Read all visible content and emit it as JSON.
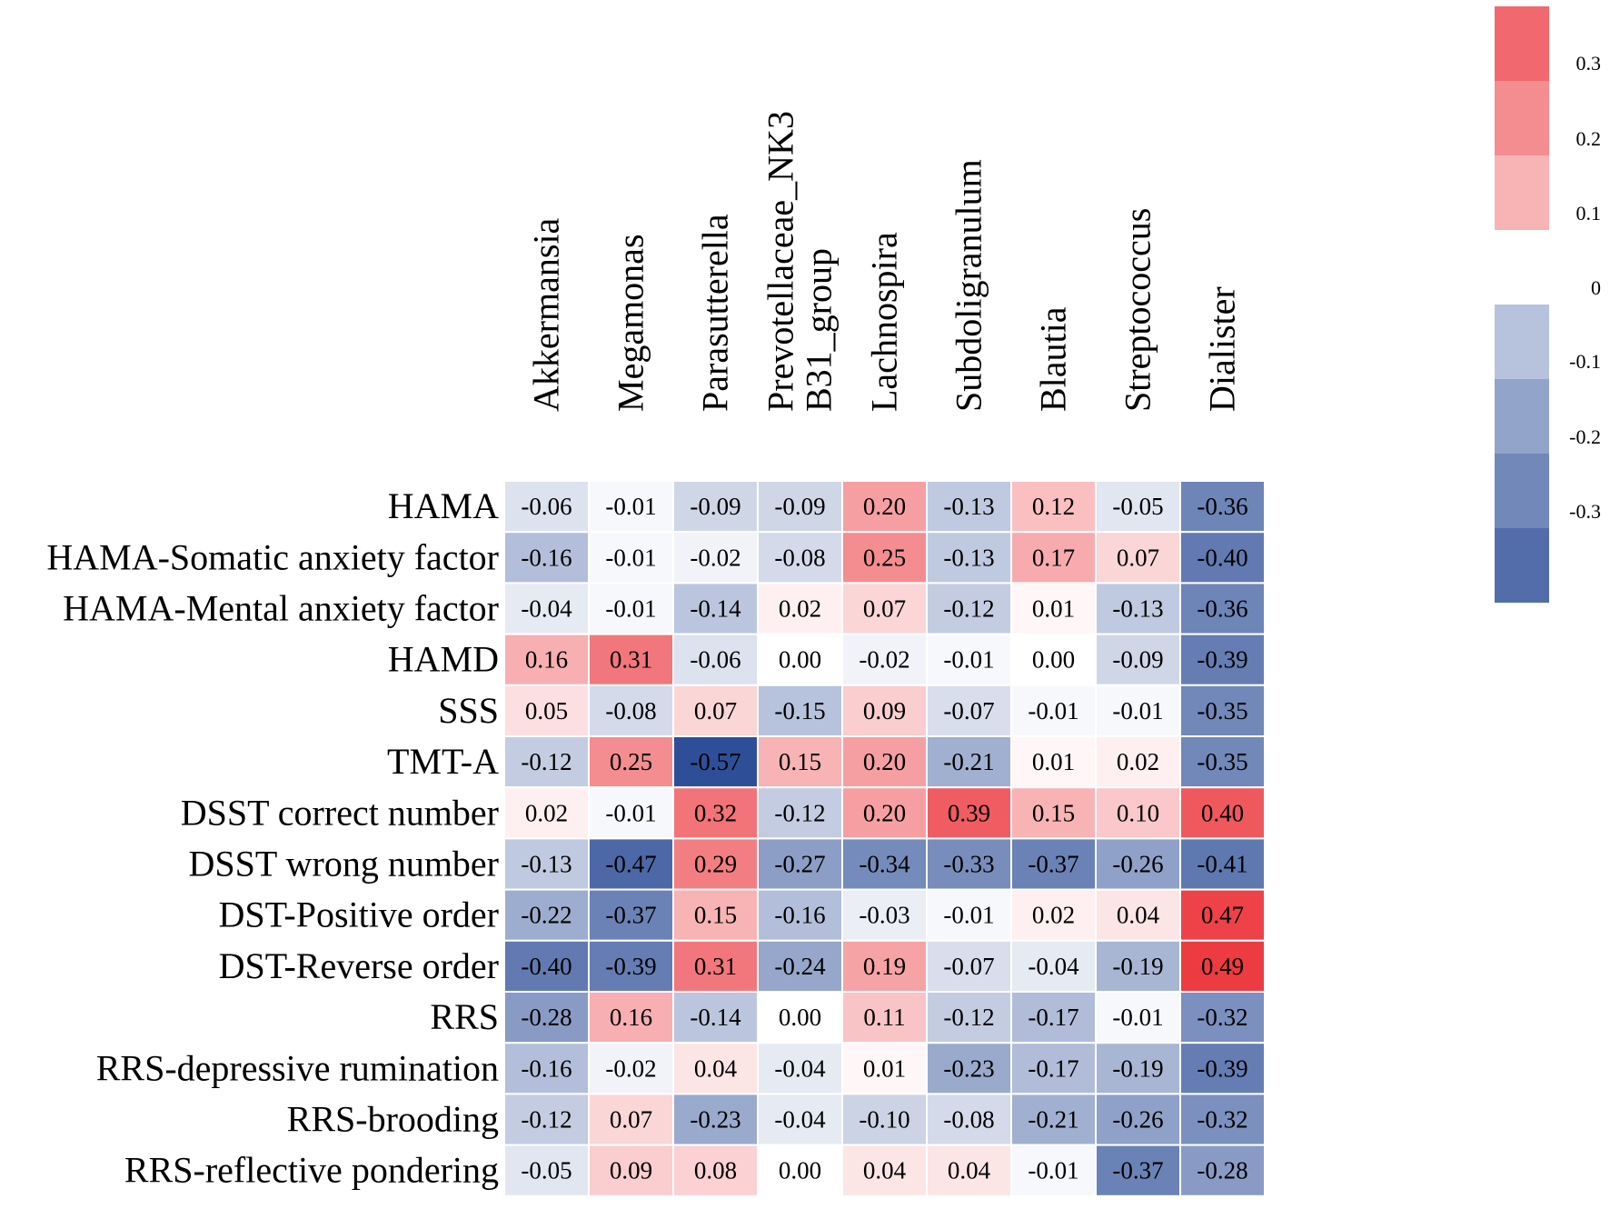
{
  "chart_data": {
    "type": "heatmap",
    "title": "",
    "columns": [
      [
        "Akkermansia"
      ],
      [
        "Megamonas"
      ],
      [
        "Parasutterella"
      ],
      [
        "Prevotellaceae_NK3",
        "B31_group"
      ],
      [
        "Lachnospira"
      ],
      [
        "Subdoligranulum"
      ],
      [
        "Blautia"
      ],
      [
        "Streptococcus"
      ],
      [
        "Dialister"
      ]
    ],
    "rows": [
      "HAMA",
      "HAMA-Somatic anxiety factor",
      "HAMA-Mental anxiety factor",
      "HAMD",
      "SSS",
      "TMT-A",
      "DSST correct number",
      "DSST wrong number",
      "DST-Positive order",
      "DST-Reverse order",
      "RRS",
      "RRS-depressive rumination",
      "RRS-brooding",
      "RRS-reflective pondering"
    ],
    "values": [
      [
        "-0.06",
        "-0.01",
        "-0.09",
        "-0.09",
        "0.20",
        "-0.13",
        "0.12",
        "-0.05",
        "-0.36"
      ],
      [
        "-0.16",
        "-0.01",
        "-0.02",
        "-0.08",
        "0.25",
        "-0.13",
        "0.17",
        "0.07",
        "-0.40"
      ],
      [
        "-0.04",
        "-0.01",
        "-0.14",
        "0.02",
        "0.07",
        "-0.12",
        "0.01",
        "-0.13",
        "-0.36"
      ],
      [
        "0.16",
        "0.31",
        "-0.06",
        "0.00",
        "-0.02",
        "-0.01",
        "0.00",
        "-0.09",
        "-0.39"
      ],
      [
        "0.05",
        "-0.08",
        "0.07",
        "-0.15",
        "0.09",
        "-0.07",
        "-0.01",
        "-0.01",
        "-0.35"
      ],
      [
        "-0.12",
        "0.25",
        "-0.57",
        "0.15",
        "0.20",
        "-0.21",
        "0.01",
        "0.02",
        "-0.35"
      ],
      [
        "0.02",
        "-0.01",
        "0.32",
        "-0.12",
        "0.20",
        "0.39",
        "0.15",
        "0.10",
        "0.40"
      ],
      [
        "-0.13",
        "-0.47",
        "0.29",
        "-0.27",
        "-0.34",
        "-0.33",
        "-0.37",
        "-0.26",
        "-0.41"
      ],
      [
        "-0.22",
        "-0.37",
        "0.15",
        "-0.16",
        "-0.03",
        "-0.01",
        "0.02",
        "0.04",
        "0.47"
      ],
      [
        "-0.40",
        "-0.39",
        "0.31",
        "-0.24",
        "0.19",
        "-0.07",
        "-0.04",
        "-0.19",
        "0.49"
      ],
      [
        "-0.28",
        "0.16",
        "-0.14",
        "0.00",
        "0.11",
        "-0.12",
        "-0.17",
        "-0.01",
        "-0.32"
      ],
      [
        "-0.16",
        "-0.02",
        "0.04",
        "-0.04",
        "0.01",
        "-0.23",
        "-0.17",
        "-0.19",
        "-0.39"
      ],
      [
        "-0.12",
        "0.07",
        "-0.23",
        "-0.04",
        "-0.10",
        "-0.08",
        "-0.21",
        "-0.26",
        "-0.32"
      ],
      [
        "-0.05",
        "0.09",
        "0.08",
        "0.00",
        "0.04",
        "0.04",
        "-0.01",
        "-0.37",
        "-0.28"
      ]
    ],
    "legend": {
      "position": "top-right",
      "ticks": [
        "0.3",
        "0.2",
        "0.1",
        "0",
        "-0.1",
        "-0.2",
        "-0.3"
      ],
      "positive_blocks": [
        0.35,
        0.25,
        0.15
      ],
      "negative_blocks": [
        -0.15,
        -0.25,
        -0.35,
        -0.45
      ]
    },
    "colors": {
      "positive": "#ea2229",
      "negative": "#2e4f98",
      "zero": "#ffffff"
    }
  }
}
